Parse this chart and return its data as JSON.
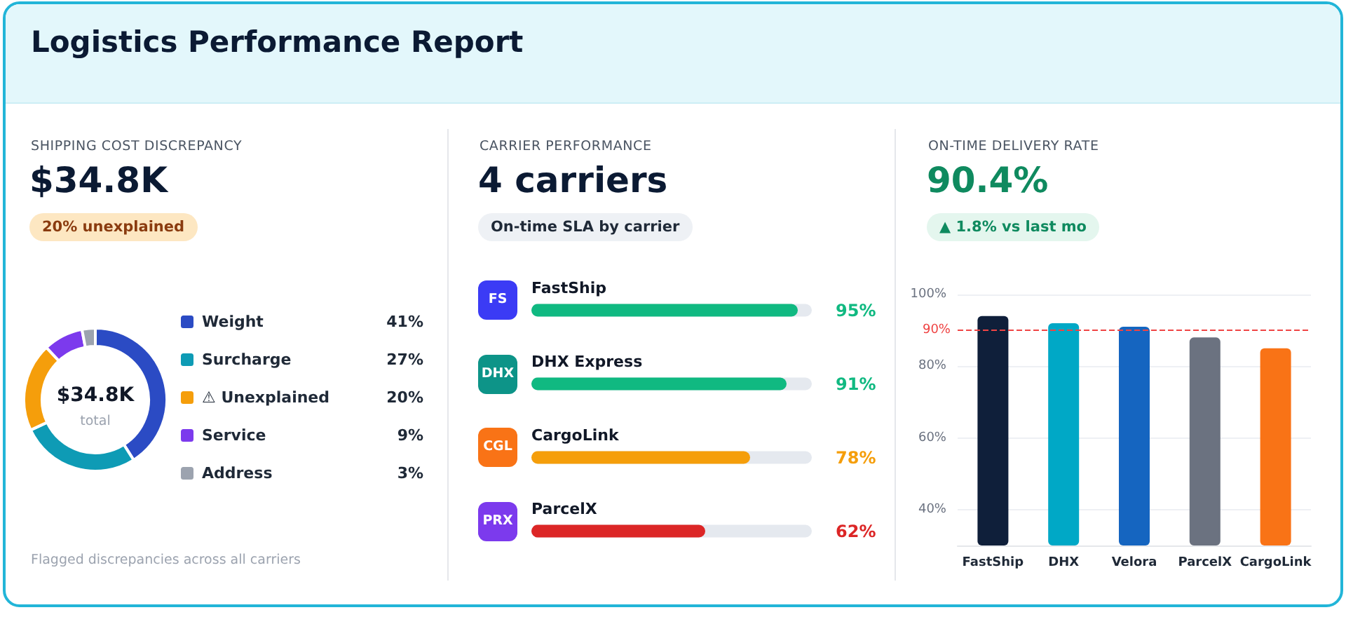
{
  "chart_data": [
    {
      "type": "other",
      "title": "Logistics Performance Report"
    },
    {
      "type": "donut",
      "title": "SHIPPING COST DISCREPANCY",
      "subtitle": "$34.8K",
      "categories": [
        "Weight",
        "Surcharge",
        "⚠ Unexplained",
        "Service",
        "Address"
      ],
      "values": [
        41,
        27,
        20,
        9,
        3
      ],
      "colors": [
        "#2b4bc4",
        "#0e9bb5",
        "#f59e0b",
        "#7c3aed",
        "#9ca3af"
      ],
      "value_labels": [
        "41%",
        "27%",
        "20%",
        "9%",
        "3%"
      ],
      "legend": "right",
      "annotations": [
        "20% unexplained",
        "$34.8K",
        "total",
        "Flagged discrepancies across all carriers"
      ]
    },
    {
      "type": "bar",
      "orientation": "horizontal",
      "title": "CARRIER PERFORMANCE",
      "subtitle": "4 carriers",
      "categories": [
        "FastShip",
        "DHX Express",
        "CargoLink",
        "ParcelX"
      ],
      "values": [
        95,
        91,
        78,
        62
      ],
      "colors": [
        "#10b981",
        "#10b981",
        "#f59e0b",
        "#dc2626"
      ],
      "value_labels": [
        "95%",
        "91%",
        "78%",
        "62%"
      ],
      "xlim": [
        0,
        100
      ],
      "tick_labels": "y",
      "annotations": [
        "On-time SLA by carrier",
        "FS",
        "DHX",
        "CGL",
        "PRX"
      ]
    },
    {
      "type": "bar",
      "title": "ON-TIME DELIVERY RATE",
      "subtitle": "90.4%",
      "categories": [
        "FastShip",
        "DHX",
        "Velora",
        "ParcelX",
        "CargoLink"
      ],
      "values": [
        94,
        92,
        91,
        88,
        85
      ],
      "colors": [
        "#0f1f3a",
        "#00a8c6",
        "#1565c0",
        "#6b7280",
        "#f97316"
      ],
      "ylim": [
        30,
        100
      ],
      "yticks": [
        {
          "value": 40,
          "label": "40%"
        },
        {
          "value": 60,
          "label": "60%"
        },
        {
          "value": 80,
          "label": "80%"
        },
        {
          "value": 100,
          "label": "100%"
        }
      ],
      "grid": "y",
      "ref_lines": [
        {
          "axis": "y",
          "value": 90,
          "label": "90%",
          "color": "#ef4444",
          "line_style": "dashed"
        }
      ],
      "annotations": [
        "▲ 1.8% vs last mo"
      ]
    }
  ]
}
